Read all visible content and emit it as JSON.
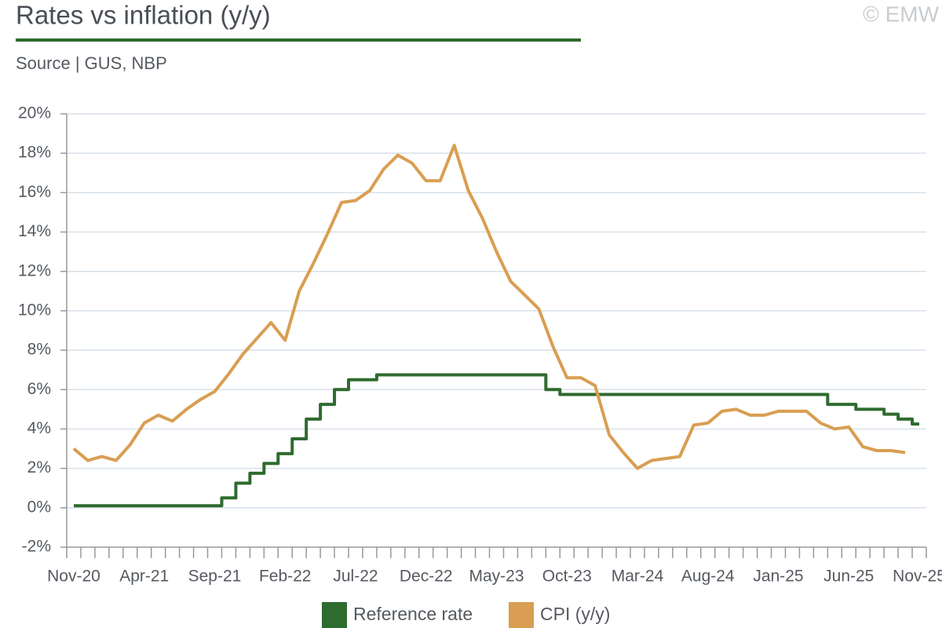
{
  "chart_data": {
    "type": "line",
    "title": "Rates vs inflation (y/y)",
    "subtitle": "Source | GUS, NBP",
    "watermark": "© EMW",
    "categories": [
      "Nov-20",
      null,
      null,
      null,
      null,
      "Apr-21",
      null,
      null,
      null,
      null,
      "Sep-21",
      null,
      null,
      null,
      null,
      "Feb-22",
      null,
      null,
      null,
      null,
      "Jul-22",
      null,
      null,
      null,
      null,
      "Dec-22",
      null,
      null,
      null,
      null,
      "May-23",
      null,
      null,
      null,
      null,
      "Oct-23",
      null,
      null,
      null,
      null,
      "Mar-24",
      null,
      null,
      null,
      null,
      "Aug-24",
      null,
      null,
      null,
      null,
      "Jan-25",
      null,
      null,
      null,
      null,
      "Jun-25",
      null,
      null,
      null,
      null,
      "Nov-25"
    ],
    "series": [
      {
        "name": "Reference rate",
        "color": "#2e6b2f",
        "step": true,
        "values": [
          0.1,
          0.1,
          0.1,
          0.1,
          0.1,
          0.1,
          0.1,
          0.1,
          0.1,
          0.1,
          0.1,
          0.5,
          1.25,
          1.75,
          2.25,
          2.75,
          3.5,
          4.5,
          5.25,
          6.0,
          6.5,
          6.5,
          6.75,
          6.75,
          6.75,
          6.75,
          6.75,
          6.75,
          6.75,
          6.75,
          6.75,
          6.75,
          6.75,
          6.75,
          6.0,
          5.75,
          5.75,
          5.75,
          5.75,
          5.75,
          5.75,
          5.75,
          5.75,
          5.75,
          5.75,
          5.75,
          5.75,
          5.75,
          5.75,
          5.75,
          5.75,
          5.75,
          5.75,
          5.75,
          5.25,
          5.25,
          5.0,
          5.0,
          4.75,
          4.5,
          4.25
        ]
      },
      {
        "name": "CPI (y/y)",
        "color": "#d99e52",
        "values": [
          3.0,
          2.4,
          2.6,
          2.4,
          3.2,
          4.3,
          4.7,
          4.4,
          5.0,
          5.5,
          5.9,
          6.8,
          7.8,
          8.6,
          9.4,
          8.5,
          11.0,
          12.4,
          13.9,
          15.5,
          15.6,
          16.1,
          17.2,
          17.9,
          17.5,
          16.6,
          16.6,
          18.4,
          16.1,
          14.7,
          13.0,
          11.5,
          10.8,
          10.1,
          8.2,
          6.6,
          6.6,
          6.2,
          3.7,
          2.8,
          2.0,
          2.4,
          2.5,
          2.6,
          4.2,
          4.3,
          4.9,
          5.0,
          4.7,
          4.7,
          4.9,
          4.9,
          4.9,
          4.3,
          4.0,
          4.1,
          3.1,
          2.9,
          2.9,
          2.8,
          null
        ]
      }
    ],
    "ylim": [
      -2,
      20
    ],
    "yticks": [
      {
        "value": -2,
        "label": "-2%"
      },
      {
        "value": 0,
        "label": "0%"
      },
      {
        "value": 2,
        "label": "2%"
      },
      {
        "value": 4,
        "label": "4%"
      },
      {
        "value": 6,
        "label": "6%"
      },
      {
        "value": 8,
        "label": "8%"
      },
      {
        "value": 10,
        "label": "10%"
      },
      {
        "value": 12,
        "label": "12%"
      },
      {
        "value": 14,
        "label": "14%"
      },
      {
        "value": 16,
        "label": "16%"
      },
      {
        "value": 18,
        "label": "18%"
      },
      {
        "value": 20,
        "label": "20%"
      }
    ],
    "grid": true,
    "legend": "bottom"
  }
}
